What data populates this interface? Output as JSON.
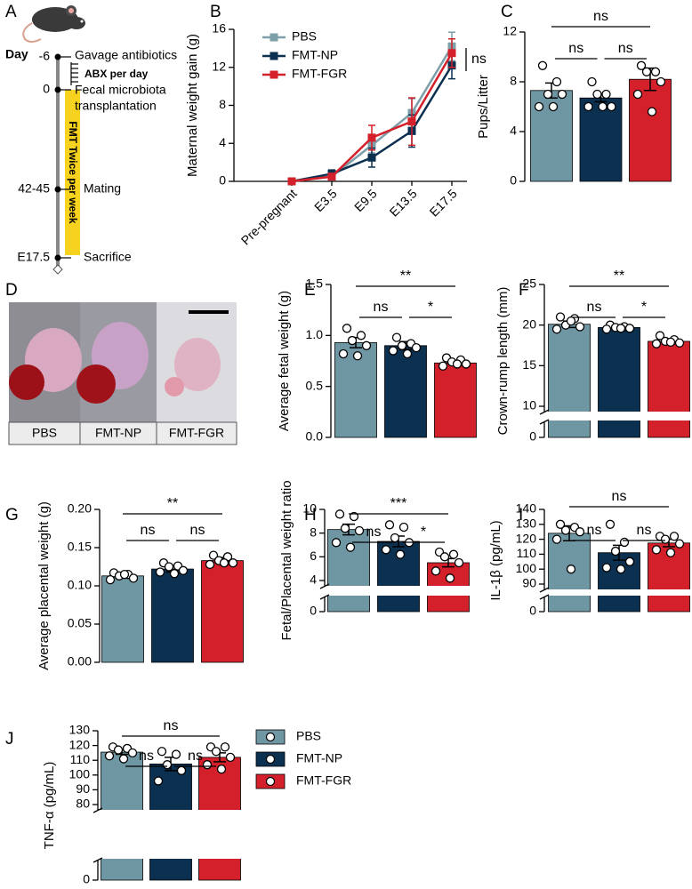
{
  "timeline": {
    "panel": "A",
    "axis_title": "Day",
    "days": [
      "-6",
      "0",
      "42-45",
      "E17.5"
    ],
    "events": [
      "Gavage antibiotics",
      "ABX per day",
      "Fecal microbiota",
      "transplantation",
      "FMT Twice per week",
      "Mating",
      "Sacrifice"
    ]
  },
  "photo": {
    "panel": "D",
    "labels": [
      "PBS",
      "FMT-NP",
      "FMT-FGR"
    ]
  },
  "legend": [
    {
      "name": "PBS",
      "color": "#6f97a3"
    },
    {
      "name": "FMT-NP",
      "color": "#0c3150"
    },
    {
      "name": "FMT-FGR",
      "color": "#d3202a"
    }
  ],
  "chart_data": [
    {
      "panel": "B",
      "type": "line",
      "ylabel": "Maternal weight gain (g)",
      "categories": [
        "Pre-pregnant",
        "E3.5",
        "E9.5",
        "E13.5",
        "E17.5"
      ],
      "ylim": [
        0,
        16
      ],
      "yticks": [
        0,
        4,
        8,
        12,
        16
      ],
      "series": [
        {
          "name": "PBS",
          "color": "#7d9faa",
          "values": [
            0,
            0.5,
            3.8,
            7.2,
            14.2
          ],
          "errors": [
            0,
            0.3,
            0.8,
            1.5,
            1.5
          ]
        },
        {
          "name": "FMT-NP",
          "color": "#0c3150",
          "values": [
            0,
            0.8,
            2.5,
            5.3,
            12.2
          ],
          "errors": [
            0,
            0.4,
            1,
            1.7,
            1.4
          ]
        },
        {
          "name": "FMT-FGR",
          "color": "#d3202a",
          "values": [
            0,
            0.5,
            4.6,
            6.3,
            13.5
          ],
          "errors": [
            0,
            0.3,
            1.3,
            2.5,
            1.5
          ]
        }
      ],
      "annotation": "ns"
    },
    {
      "panel": "C",
      "type": "bar",
      "ylabel": "Pups/Litter",
      "ylim": [
        0,
        12
      ],
      "yticks": [
        0,
        4,
        8,
        12
      ],
      "colors": [
        "#6f97a3",
        "#0c3150",
        "#d3202a"
      ],
      "values": [
        7.3,
        6.7,
        8.2
      ],
      "errors": [
        0.6,
        0.3,
        0.9
      ],
      "points": [
        [
          9.3,
          8,
          7,
          7,
          6,
          6
        ],
        [
          8,
          7,
          7,
          6,
          6,
          6
        ],
        [
          9.3,
          8.8,
          8.8,
          8,
          7,
          5.6
        ]
      ],
      "comparisons": [
        {
          "pair": [
            0,
            2
          ],
          "label": "ns"
        },
        {
          "pair": [
            0,
            1
          ],
          "label": "ns"
        },
        {
          "pair": [
            1,
            2
          ],
          "label": "ns"
        }
      ]
    },
    {
      "panel": "E",
      "type": "bar",
      "ylabel": "Average fetal weight (g)",
      "ylim": [
        0,
        1.5
      ],
      "yticks": [
        {
          "value": 0,
          "label": "0.0"
        },
        0.5,
        {
          "value": 1,
          "label": "1.0"
        },
        1.5
      ],
      "colors": [
        "#6f97a3",
        "#0c3150",
        "#d3202a"
      ],
      "values": [
        0.93,
        0.9,
        0.73
      ],
      "errors": [
        0.05,
        0.04,
        0.02
      ],
      "points": [
        [
          1.07,
          1.0,
          0.95,
          0.9,
          0.82,
          0.8
        ],
        [
          0.98,
          0.92,
          0.9,
          0.88,
          0.85,
          0.82
        ],
        [
          0.78,
          0.76,
          0.74,
          0.72,
          0.7,
          0.72
        ]
      ],
      "comparisons": [
        {
          "pair": [
            0,
            2
          ],
          "label": "**"
        },
        {
          "pair": [
            0,
            1
          ],
          "label": "ns"
        },
        {
          "pair": [
            1,
            2
          ],
          "label": "*"
        }
      ]
    },
    {
      "panel": "F",
      "type": "bar",
      "ylabel": "Crown-rump length (mm)",
      "ylim": [
        10,
        25
      ],
      "yticks": [
        10,
        15,
        20,
        25
      ],
      "ybreak": [
        0
      ],
      "colors": [
        "#6f97a3",
        "#0c3150",
        "#d3202a"
      ],
      "values": [
        20.1,
        19.7,
        18.0
      ],
      "errors": [
        0.4,
        0.2,
        0.2
      ],
      "points": [
        [
          21,
          20.8,
          20,
          19.8,
          19.5,
          20.5
        ],
        [
          20,
          19.8,
          19.7,
          19.6,
          19.5,
          19.6
        ],
        [
          18.7,
          18.2,
          18,
          17.8,
          17.7,
          17.9
        ]
      ],
      "comparisons": [
        {
          "pair": [
            0,
            2
          ],
          "label": "**"
        },
        {
          "pair": [
            0,
            1
          ],
          "label": "ns"
        },
        {
          "pair": [
            1,
            2
          ],
          "label": "*"
        }
      ]
    },
    {
      "panel": "G",
      "type": "bar",
      "ylabel": "Average placental weight (g)",
      "ylim": [
        0,
        0.2
      ],
      "yticks": [
        {
          "value": 0,
          "label": "0.00"
        },
        0.05,
        {
          "value": 0.1,
          "label": "0.10"
        },
        0.15,
        {
          "value": 0.2,
          "label": "0.20"
        }
      ],
      "colors": [
        "#6f97a3",
        "#0c3150",
        "#d3202a"
      ],
      "values": [
        0.113,
        0.122,
        0.133
      ],
      "errors": [
        0.003,
        0.004,
        0.004
      ],
      "points": [
        [
          0.117,
          0.115,
          0.113,
          0.11,
          0.108,
          0.115
        ],
        [
          0.13,
          0.126,
          0.125,
          0.12,
          0.118,
          0.116
        ],
        [
          0.14,
          0.138,
          0.133,
          0.13,
          0.128,
          0.13
        ]
      ],
      "comparisons": [
        {
          "pair": [
            0,
            2
          ],
          "label": "**"
        },
        {
          "pair": [
            0,
            1
          ],
          "label": "ns"
        },
        {
          "pair": [
            1,
            2
          ],
          "label": "ns"
        }
      ]
    },
    {
      "panel": "H",
      "type": "bar",
      "ylabel": "Fetal/Placental weight ratio",
      "ylim": [
        4,
        10
      ],
      "yticks": [
        4,
        6,
        8,
        10
      ],
      "ybreak": [
        0
      ],
      "colors": [
        "#6f97a3",
        "#0c3150",
        "#d3202a"
      ],
      "values": [
        8.3,
        7.3,
        5.5
      ],
      "errors": [
        0.45,
        0.45,
        0.35
      ],
      "points": [
        [
          9.6,
          9.4,
          8.4,
          8.2,
          7.2,
          6.8
        ],
        [
          8.7,
          8.5,
          7.6,
          7.2,
          6.6,
          6.2
        ],
        [
          6.4,
          6.2,
          6.0,
          5.5,
          4.8,
          4.2
        ]
      ],
      "comparisons": [
        {
          "pair": [
            0,
            2
          ],
          "label": "***"
        },
        {
          "pair": [
            0,
            1
          ],
          "label": "ns"
        },
        {
          "pair": [
            1,
            2
          ],
          "label": "*"
        }
      ]
    },
    {
      "panel": "I",
      "type": "bar",
      "ylabel": "IL-1β (pg/mL)",
      "ylim": [
        90,
        140
      ],
      "yticks": [
        90,
        100,
        110,
        120,
        130,
        140
      ],
      "ybreak": [
        0
      ],
      "colors": [
        "#6f97a3",
        "#0c3150",
        "#d3202a"
      ],
      "values": [
        124,
        111,
        117.5
      ],
      "errors": [
        5,
        5,
        2.5
      ],
      "points": [
        [
          130,
          128,
          126,
          125,
          120,
          100
        ],
        [
          130,
          118,
          112,
          105,
          101,
          100
        ],
        [
          122,
          122,
          120,
          117,
          113,
          111
        ]
      ],
      "comparisons": [
        {
          "pair": [
            0,
            2
          ],
          "label": "ns"
        },
        {
          "pair": [
            0,
            1
          ],
          "label": "ns"
        },
        {
          "pair": [
            1,
            2
          ],
          "label": "ns"
        }
      ]
    },
    {
      "panel": "J",
      "type": "bar",
      "ylabel": "TNF-α (pg/mL)",
      "ylim": [
        80,
        130
      ],
      "yticks": [
        80,
        90,
        100,
        110,
        120,
        130
      ],
      "ybreak": [
        0
      ],
      "colors": [
        "#6f97a3",
        "#0c3150",
        "#d3202a"
      ],
      "values": [
        115.5,
        107.5,
        112
      ],
      "errors": [
        1.5,
        4.5,
        3
      ],
      "points": [
        [
          119,
          118,
          117,
          115,
          113,
          111
        ],
        [
          116,
          114,
          107,
          103,
          96
        ],
        [
          119,
          119,
          116,
          112,
          107,
          104
        ]
      ],
      "comparisons": [
        {
          "pair": [
            0,
            2
          ],
          "label": "ns"
        },
        {
          "pair": [
            0,
            1
          ],
          "label": "ns"
        },
        {
          "pair": [
            1,
            2
          ],
          "label": "ns"
        }
      ]
    }
  ]
}
